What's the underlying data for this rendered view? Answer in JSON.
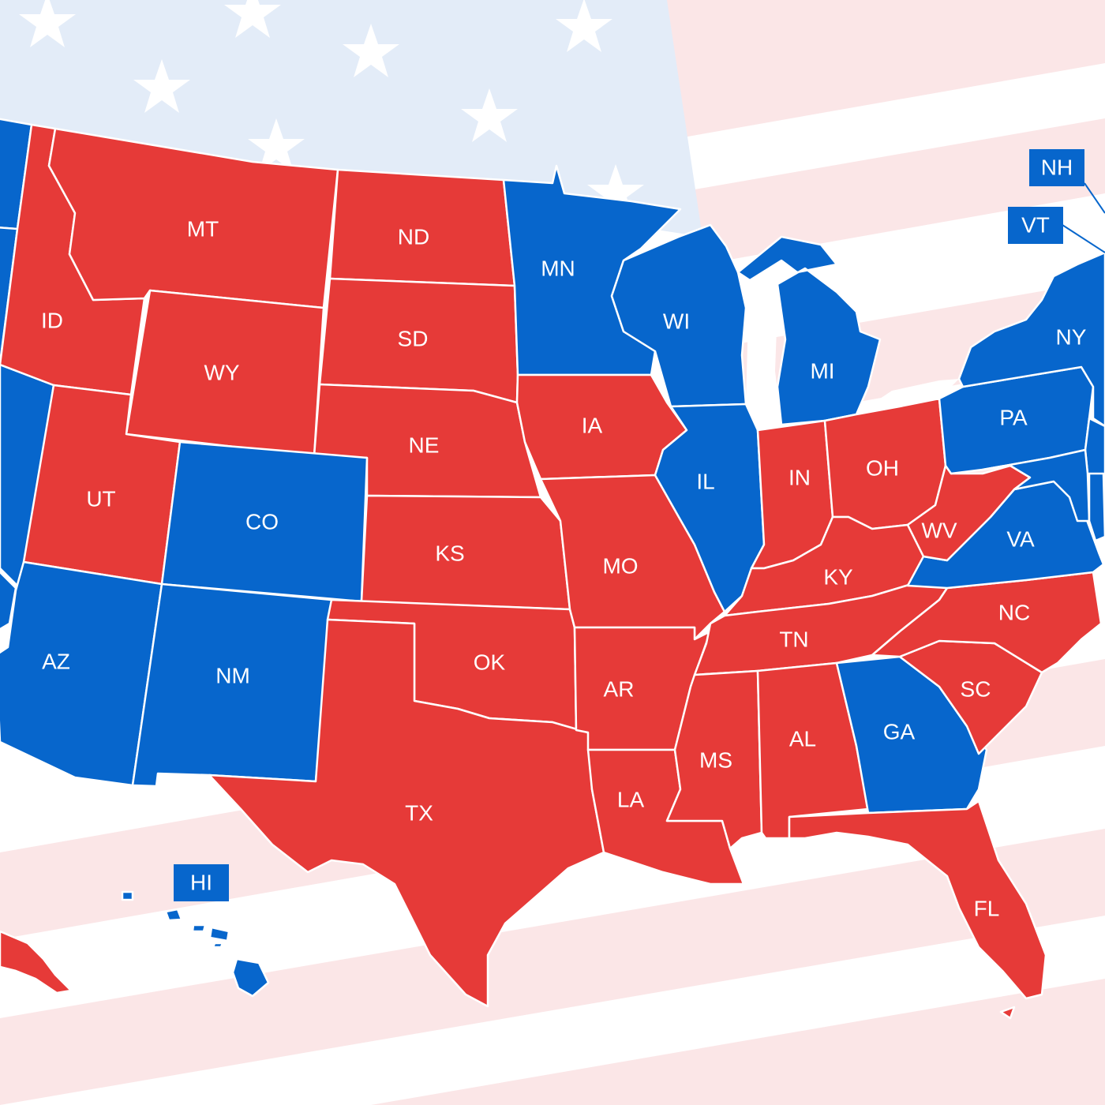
{
  "map": {
    "colors": {
      "republican": "#e63a38",
      "democrat": "#0766cc",
      "flag_stripe": "#fbe6e7",
      "flag_canton": "#e3ecf8"
    },
    "states": {
      "WA": {
        "label": "",
        "party": "democrat"
      },
      "OR": {
        "label": "",
        "party": "democrat"
      },
      "CA": {
        "label": "",
        "party": "democrat"
      },
      "NV": {
        "label": "",
        "party": "democrat"
      },
      "ID": {
        "label": "ID",
        "party": "republican"
      },
      "MT": {
        "label": "MT",
        "party": "republican"
      },
      "WY": {
        "label": "WY",
        "party": "republican"
      },
      "UT": {
        "label": "UT",
        "party": "republican"
      },
      "AZ": {
        "label": "AZ",
        "party": "democrat"
      },
      "CO": {
        "label": "CO",
        "party": "democrat"
      },
      "NM": {
        "label": "NM",
        "party": "democrat"
      },
      "ND": {
        "label": "ND",
        "party": "republican"
      },
      "SD": {
        "label": "SD",
        "party": "republican"
      },
      "NE": {
        "label": "NE",
        "party": "republican"
      },
      "KS": {
        "label": "KS",
        "party": "republican"
      },
      "OK": {
        "label": "OK",
        "party": "republican"
      },
      "TX": {
        "label": "TX",
        "party": "republican"
      },
      "MN": {
        "label": "MN",
        "party": "democrat"
      },
      "IA": {
        "label": "IA",
        "party": "republican"
      },
      "MO": {
        "label": "MO",
        "party": "republican"
      },
      "AR": {
        "label": "AR",
        "party": "republican"
      },
      "LA": {
        "label": "LA",
        "party": "republican"
      },
      "WI": {
        "label": "WI",
        "party": "democrat"
      },
      "IL": {
        "label": "IL",
        "party": "democrat"
      },
      "MI": {
        "label": "MI",
        "party": "democrat"
      },
      "IN": {
        "label": "IN",
        "party": "republican"
      },
      "OH": {
        "label": "OH",
        "party": "republican"
      },
      "KY": {
        "label": "KY",
        "party": "republican"
      },
      "TN": {
        "label": "TN",
        "party": "republican"
      },
      "MS": {
        "label": "MS",
        "party": "republican"
      },
      "AL": {
        "label": "AL",
        "party": "republican"
      },
      "GA": {
        "label": "GA",
        "party": "democrat"
      },
      "FL": {
        "label": "FL",
        "party": "republican"
      },
      "SC": {
        "label": "SC",
        "party": "republican"
      },
      "NC": {
        "label": "NC",
        "party": "republican"
      },
      "VA": {
        "label": "VA",
        "party": "democrat"
      },
      "WV": {
        "label": "WV",
        "party": "republican"
      },
      "PA": {
        "label": "PA",
        "party": "democrat"
      },
      "NY": {
        "label": "NY",
        "party": "democrat"
      },
      "NJ": {
        "label": "",
        "party": "democrat"
      },
      "MD": {
        "label": "",
        "party": "democrat"
      },
      "DE": {
        "label": "",
        "party": "democrat"
      },
      "AK": {
        "label": "",
        "party": "republican"
      },
      "HI": {
        "label": "HI",
        "party": "democrat"
      }
    },
    "callouts": {
      "NH": "NH",
      "VT": "VT"
    }
  }
}
